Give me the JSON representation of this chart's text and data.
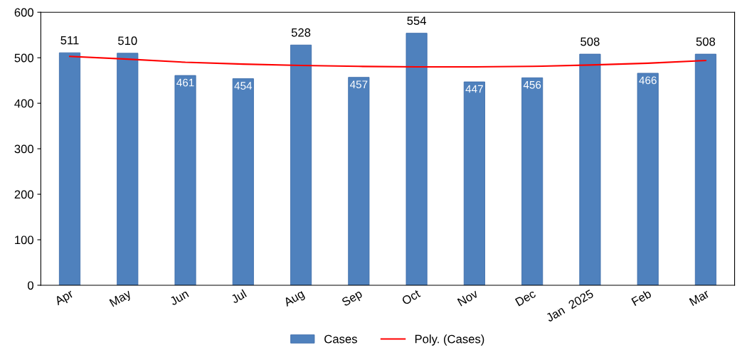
{
  "chart_data": {
    "type": "bar",
    "categories": [
      "Apr",
      "May",
      "Jun",
      "Jul",
      "Aug",
      "Sep",
      "Oct",
      "Nov",
      "Dec",
      "Jan  2025",
      "Feb",
      "Mar"
    ],
    "series": [
      {
        "name": "Cases",
        "color": "#4f81bd",
        "values": [
          511,
          510,
          461,
          454,
          528,
          457,
          554,
          447,
          456,
          508,
          466,
          508
        ],
        "value_labels": [
          "511",
          "510",
          "461",
          "454",
          "528",
          "457",
          "554",
          "447",
          "456",
          "508",
          "466",
          "508"
        ]
      },
      {
        "name": "Poly. (Cases)",
        "type": "line",
        "color": "#ff0000",
        "values": [
          503,
          497,
          490,
          486,
          483,
          481,
          480,
          480,
          481,
          484,
          488,
          494
        ]
      }
    ],
    "ylim": [
      0,
      600
    ],
    "yticks": [
      0,
      100,
      200,
      300,
      400,
      500,
      600
    ],
    "grid": false,
    "legend": "bottom",
    "marker": "none",
    "line_style": "solid"
  }
}
